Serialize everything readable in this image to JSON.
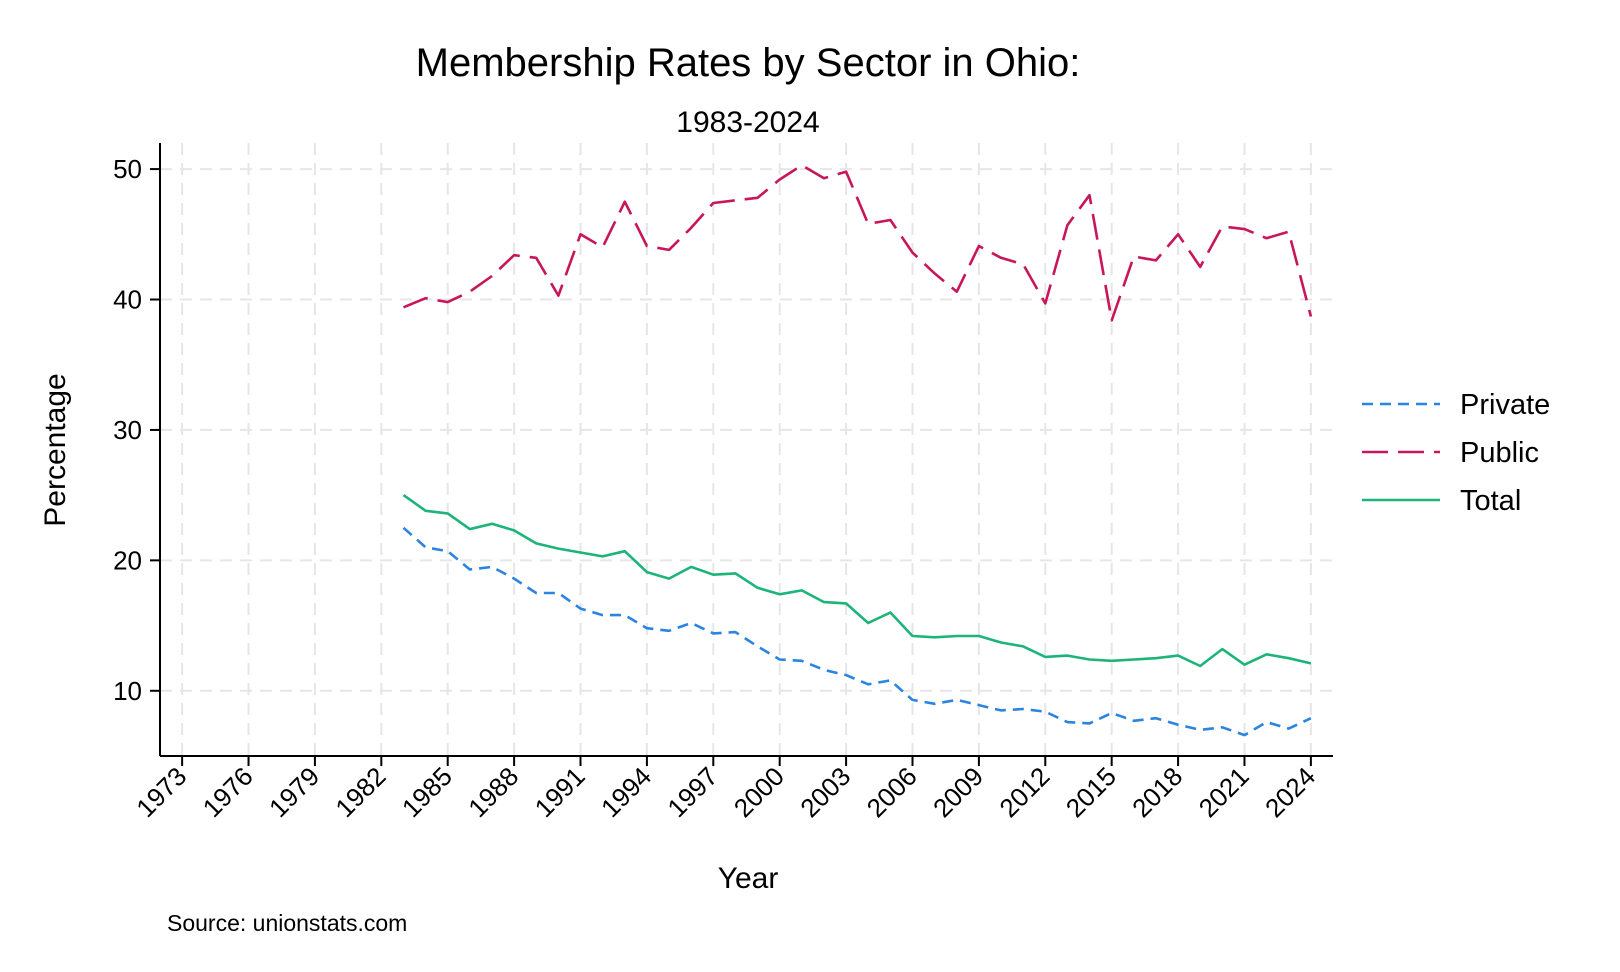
{
  "chart_data": {
    "type": "line",
    "title": "Membership Rates by Sector in Ohio:",
    "subtitle": "1983-2024",
    "xlabel": "Year",
    "ylabel": "Percentage",
    "note": "Source: unionstats.com",
    "xlim": [
      1972,
      2025
    ],
    "ylim": [
      5,
      52
    ],
    "x_ticks": [
      1973,
      1976,
      1979,
      1982,
      1985,
      1988,
      1991,
      1994,
      1997,
      2000,
      2003,
      2006,
      2009,
      2012,
      2015,
      2018,
      2021,
      2024
    ],
    "y_ticks": [
      10,
      20,
      30,
      40,
      50
    ],
    "grid": true,
    "legend_position": "right",
    "x": [
      1983,
      1984,
      1985,
      1986,
      1987,
      1988,
      1989,
      1990,
      1991,
      1992,
      1993,
      1994,
      1995,
      1996,
      1997,
      1998,
      1999,
      2000,
      2001,
      2002,
      2003,
      2004,
      2005,
      2006,
      2007,
      2008,
      2009,
      2010,
      2011,
      2012,
      2013,
      2014,
      2015,
      2016,
      2017,
      2018,
      2019,
      2020,
      2021,
      2022,
      2023,
      2024
    ],
    "series": [
      {
        "name": "Private",
        "color": "#2a84e0",
        "dash": "short",
        "values": [
          22.5,
          21.0,
          20.7,
          19.3,
          19.5,
          18.6,
          17.5,
          17.5,
          16.3,
          15.8,
          15.8,
          14.8,
          14.6,
          15.2,
          14.4,
          14.5,
          13.4,
          12.4,
          12.3,
          11.6,
          11.2,
          10.5,
          10.8,
          9.3,
          9.0,
          9.3,
          8.9,
          8.5,
          8.6,
          8.4,
          7.6,
          7.5,
          8.3,
          7.7,
          7.9,
          7.4,
          7.0,
          7.2,
          6.6,
          7.6,
          7.1,
          7.9
        ]
      },
      {
        "name": "Public",
        "color": "#c8165c",
        "dash": "long",
        "values": [
          39.4,
          40.1,
          39.8,
          40.6,
          41.8,
          43.4,
          43.2,
          40.3,
          45.0,
          44.0,
          47.5,
          44.1,
          43.8,
          45.5,
          47.4,
          47.6,
          47.8,
          49.2,
          50.3,
          49.3,
          49.8,
          45.8,
          46.1,
          43.6,
          42.0,
          40.6,
          44.1,
          43.2,
          42.7,
          39.7,
          45.7,
          48.0,
          38.4,
          43.3,
          43.0,
          45.0,
          42.5,
          45.6,
          45.4,
          44.7,
          45.2,
          38.7
        ]
      },
      {
        "name": "Total",
        "color": "#1db47a",
        "dash": "solid",
        "values": [
          25.0,
          23.8,
          23.6,
          22.4,
          22.8,
          22.3,
          21.3,
          20.9,
          20.6,
          20.3,
          20.7,
          19.1,
          18.6,
          19.5,
          18.9,
          19.0,
          17.9,
          17.4,
          17.7,
          16.8,
          16.7,
          15.2,
          16.0,
          14.2,
          14.1,
          14.2,
          14.2,
          13.7,
          13.4,
          12.6,
          12.7,
          12.4,
          12.3,
          12.4,
          12.5,
          12.7,
          11.9,
          13.2,
          12.0,
          12.8,
          12.5,
          12.1
        ]
      }
    ]
  }
}
